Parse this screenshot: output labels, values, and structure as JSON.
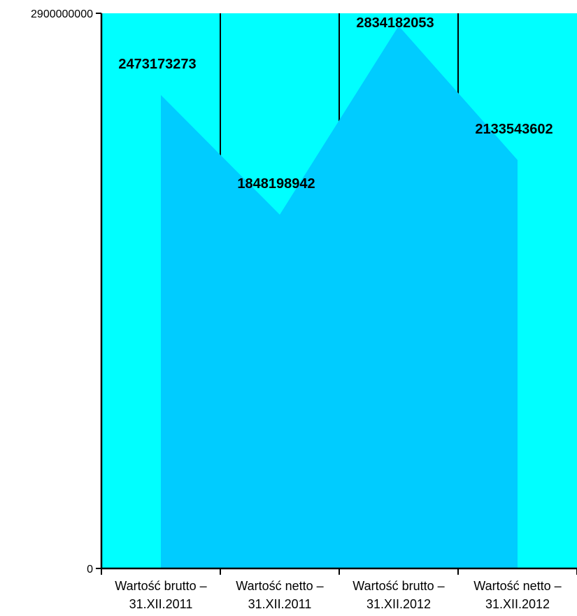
{
  "chart_data": {
    "type": "area",
    "title": "",
    "xlabel": "",
    "ylabel": "",
    "categories": [
      [
        "Wartość brutto –",
        "31.XII.2011"
      ],
      [
        "Wartość netto –",
        "31.XII.2011"
      ],
      [
        "Wartość brutto –",
        "31.XII.2012"
      ],
      [
        "Wartość netto –",
        "31.XII.2012"
      ]
    ],
    "values": [
      2473173273,
      1848198942,
      2834182053,
      2133543602
    ],
    "data_labels": [
      "2473173273",
      "1848198942",
      "2834182053",
      "2133543602"
    ],
    "ylim": [
      0,
      2900000000
    ],
    "y_tick_labels": [
      "0",
      "2900000000"
    ],
    "grid": "vertical lines between categories",
    "legend": "none",
    "colors": {
      "plot_background": "#00FFFF",
      "area_fill": "#00CCFF",
      "axis": "#000000",
      "gridline": "#000000"
    }
  }
}
